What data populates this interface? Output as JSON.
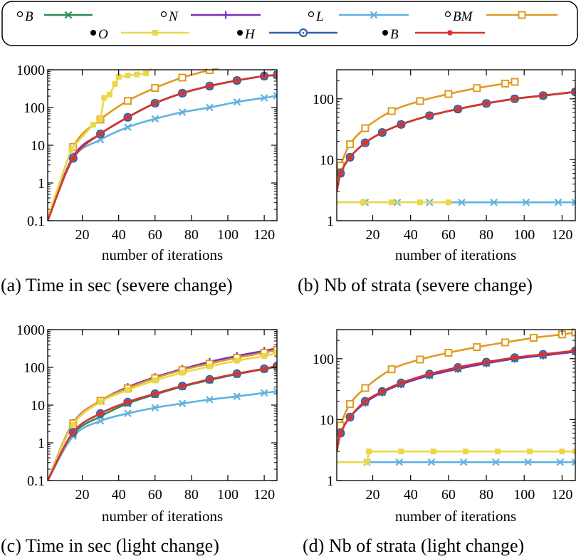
{
  "legend": {
    "items": [
      {
        "marker": "hollow-circle",
        "label": "B",
        "series": "oB"
      },
      {
        "marker": "hollow-circle",
        "label": "N",
        "series": "oN"
      },
      {
        "marker": "hollow-circle",
        "label": "L",
        "series": "oL"
      },
      {
        "marker": "hollow-circle",
        "label": "BM",
        "series": "oBM"
      },
      {
        "marker": "filled-circle",
        "label": "O",
        "series": "fO"
      },
      {
        "marker": "filled-circle",
        "label": "H",
        "series": "fH"
      },
      {
        "marker": "filled-circle",
        "label": "B",
        "series": "fB"
      }
    ]
  },
  "styles": {
    "oB": {
      "color": "#2e8b57",
      "marker": "x"
    },
    "oN": {
      "color": "#7b2fbf",
      "marker": "plus"
    },
    "oL": {
      "color": "#5fb2e0",
      "marker": "x"
    },
    "oBM": {
      "color": "#e09a1f",
      "marker": "square"
    },
    "fO": {
      "color": "#ead84a",
      "marker": "filledsquare"
    },
    "fH": {
      "color": "#2e62a8",
      "marker": "circle"
    },
    "fB": {
      "color": "#d9342b",
      "marker": "dot"
    }
  },
  "chart_data": [
    {
      "type": "line",
      "id": "a",
      "caption": "(a)  Time in sec (severe change)",
      "xlabel": "number of iterations",
      "xlim": [
        1,
        127
      ],
      "ylim": [
        0.1,
        1000
      ],
      "yscale": "log",
      "xticks": [
        20,
        40,
        60,
        80,
        100,
        120
      ],
      "yticks": [
        0.1,
        1,
        10,
        100,
        1000
      ],
      "ytick_labels": [
        "0.1",
        "1",
        "10",
        "100",
        "1000"
      ],
      "series": [
        {
          "key": "oB",
          "x": [
            1,
            15,
            30,
            45,
            60,
            75,
            90,
            105,
            120,
            127
          ],
          "y": [
            0.1,
            5,
            20,
            55,
            130,
            240,
            370,
            520,
            680,
            720
          ]
        },
        {
          "key": "oN",
          "x": [
            1,
            15,
            30,
            45,
            60,
            75,
            90,
            105,
            120,
            127
          ],
          "y": [
            0.1,
            5,
            20,
            55,
            130,
            240,
            370,
            520,
            680,
            720
          ]
        },
        {
          "key": "oL",
          "x": [
            1,
            15,
            30,
            45,
            60,
            75,
            90,
            105,
            120,
            127
          ],
          "y": [
            0.1,
            4.5,
            14,
            30,
            50,
            75,
            100,
            140,
            180,
            205
          ]
        },
        {
          "key": "oBM",
          "x": [
            1,
            15,
            30,
            45,
            60,
            75,
            90,
            95
          ],
          "y": [
            0.1,
            9,
            48,
            150,
            330,
            620,
            980,
            1100
          ]
        },
        {
          "key": "fO",
          "x": [
            1,
            14,
            26,
            30,
            32,
            35,
            38,
            40,
            45,
            50,
            55,
            58
          ],
          "y": [
            0.12,
            8,
            35,
            50,
            180,
            220,
            420,
            650,
            700,
            750,
            800,
            1100
          ]
        },
        {
          "key": "fH",
          "x": [
            1,
            15,
            30,
            45,
            60,
            75,
            90,
            105,
            120,
            127
          ],
          "y": [
            0.1,
            4.5,
            20,
            55,
            130,
            240,
            370,
            520,
            680,
            720
          ]
        },
        {
          "key": "fB",
          "x": [
            1,
            15,
            30,
            45,
            60,
            75,
            90,
            105,
            120,
            127
          ],
          "y": [
            0.1,
            4.5,
            20,
            55,
            130,
            240,
            370,
            520,
            680,
            720
          ]
        }
      ]
    },
    {
      "type": "line",
      "id": "b",
      "caption": "(b)  Nb of strata (severe change)",
      "xlabel": "number of iterations",
      "xlim": [
        1,
        127
      ],
      "ylim": [
        1,
        300
      ],
      "yscale": "log",
      "xticks": [
        20,
        40,
        60,
        80,
        100,
        120
      ],
      "yticks": [
        1,
        10,
        100
      ],
      "ytick_labels": [
        "1",
        "10",
        "100"
      ],
      "series": [
        {
          "key": "oB",
          "x": [
            1,
            3,
            8,
            16,
            25,
            35,
            50,
            65,
            80,
            95,
            110,
            127
          ],
          "y": [
            3,
            6,
            11,
            19,
            28,
            38,
            53,
            68,
            84,
            100,
            113,
            130
          ]
        },
        {
          "key": "oN",
          "x": [
            1,
            3,
            8,
            16,
            25,
            35,
            50,
            65,
            80,
            95,
            110,
            127
          ],
          "y": [
            3,
            6,
            11,
            19,
            28,
            38,
            53,
            68,
            84,
            100,
            113,
            130
          ]
        },
        {
          "key": "oL",
          "x": [
            1,
            16,
            33,
            50,
            67,
            84,
            101,
            118,
            127
          ],
          "y": [
            2,
            2,
            2,
            2,
            2,
            2,
            2,
            2,
            2
          ]
        },
        {
          "key": "oBM",
          "x": [
            1,
            3,
            8,
            16,
            30,
            45,
            60,
            75,
            90,
            95
          ],
          "y": [
            4,
            8,
            18,
            33,
            63,
            92,
            120,
            150,
            178,
            190
          ]
        },
        {
          "key": "fO",
          "x": [
            1,
            15,
            30,
            45,
            60
          ],
          "y": [
            2,
            2,
            2,
            2,
            2
          ]
        },
        {
          "key": "fH",
          "x": [
            1,
            3,
            8,
            16,
            25,
            35,
            50,
            65,
            80,
            95,
            110,
            127
          ],
          "y": [
            3,
            6,
            11,
            19,
            28,
            38,
            53,
            68,
            84,
            100,
            113,
            130
          ]
        },
        {
          "key": "fB",
          "x": [
            1,
            3,
            8,
            16,
            25,
            35,
            50,
            65,
            80,
            95,
            110,
            127
          ],
          "y": [
            3,
            6,
            11,
            19,
            28,
            38,
            53,
            68,
            84,
            100,
            113,
            130
          ]
        }
      ]
    },
    {
      "type": "line",
      "id": "c",
      "caption": "(c)  Time in sec (light change)",
      "xlabel": "number of iterations",
      "xlim": [
        1,
        127
      ],
      "ylim": [
        0.1,
        1000
      ],
      "yscale": "log",
      "xticks": [
        20,
        40,
        60,
        80,
        100,
        120
      ],
      "yticks": [
        0.1,
        1,
        10,
        100,
        1000
      ],
      "ytick_labels": [
        "0.1",
        "1",
        "10",
        "100",
        "1000"
      ],
      "series": [
        {
          "key": "oB",
          "x": [
            1,
            15,
            30,
            45,
            60,
            75,
            90,
            105,
            120,
            127
          ],
          "y": [
            0.1,
            1.7,
            5,
            11,
            19,
            31,
            46,
            66,
            90,
            105
          ]
        },
        {
          "key": "oN",
          "x": [
            1,
            15,
            30,
            45,
            60,
            75,
            90,
            105,
            120,
            127
          ],
          "y": [
            0.1,
            3.4,
            13,
            30,
            55,
            90,
            140,
            200,
            275,
            320
          ]
        },
        {
          "key": "oL",
          "x": [
            1,
            15,
            30,
            45,
            60,
            75,
            90,
            105,
            120,
            127
          ],
          "y": [
            0.1,
            1.5,
            3.8,
            6,
            8.5,
            11,
            14,
            17,
            21,
            23
          ]
        },
        {
          "key": "oBM",
          "x": [
            1,
            15,
            30,
            45,
            60,
            75,
            90,
            105,
            120,
            127
          ],
          "y": [
            0.1,
            3.3,
            13,
            28,
            52,
            85,
            125,
            180,
            245,
            290
          ]
        },
        {
          "key": "fO",
          "x": [
            1,
            15,
            30,
            45,
            60,
            75,
            90,
            105,
            120,
            127
          ],
          "y": [
            0.1,
            3,
            12,
            25,
            45,
            72,
            105,
            150,
            200,
            240
          ]
        },
        {
          "key": "fH",
          "x": [
            1,
            15,
            30,
            45,
            60,
            75,
            90,
            105,
            120,
            127
          ],
          "y": [
            0.1,
            1.9,
            6,
            12,
            20,
            32,
            48,
            68,
            92,
            108
          ]
        },
        {
          "key": "fB",
          "x": [
            1,
            15,
            30,
            45,
            60,
            75,
            90,
            105,
            120,
            127
          ],
          "y": [
            0.1,
            1.9,
            6,
            12,
            20,
            32,
            48,
            68,
            92,
            108
          ]
        }
      ]
    },
    {
      "type": "line",
      "id": "d",
      "caption": "(d)  Nb of strata (light change)",
      "xlabel": "number of iterations",
      "xlim": [
        1,
        127
      ],
      "ylim": [
        1,
        300
      ],
      "yscale": "log",
      "xticks": [
        20,
        40,
        60,
        80,
        100,
        120
      ],
      "yticks": [
        1,
        10,
        100
      ],
      "ytick_labels": [
        "1",
        "10",
        "100"
      ],
      "series": [
        {
          "key": "oB",
          "x": [
            1,
            3,
            8,
            16,
            25,
            35,
            50,
            65,
            80,
            95,
            110,
            127
          ],
          "y": [
            3,
            6,
            11,
            19,
            28,
            38,
            53,
            68,
            84,
            100,
            113,
            130
          ]
        },
        {
          "key": "oN",
          "x": [
            1,
            3,
            8,
            16,
            25,
            35,
            50,
            65,
            80,
            95,
            110,
            127
          ],
          "y": [
            3,
            6,
            11,
            19,
            28,
            38,
            53,
            68,
            84,
            100,
            113,
            130
          ]
        },
        {
          "key": "oL",
          "x": [
            1,
            17,
            34,
            51,
            68,
            85,
            102,
            119,
            127
          ],
          "y": [
            2,
            2,
            2,
            2,
            2,
            2,
            2,
            2,
            2
          ]
        },
        {
          "key": "oBM",
          "x": [
            1,
            3,
            8,
            16,
            30,
            45,
            60,
            75,
            90,
            105,
            120,
            127
          ],
          "y": [
            4,
            8,
            18,
            33,
            67,
            97,
            125,
            155,
            185,
            220,
            250,
            270
          ]
        },
        {
          "key": "fO",
          "x": [
            1,
            17,
            18,
            35,
            52,
            69,
            86,
            103,
            120,
            127
          ],
          "y": [
            2,
            2,
            3,
            3,
            3,
            3,
            3,
            3,
            3,
            3
          ]
        },
        {
          "key": "fH",
          "x": [
            1,
            3,
            8,
            16,
            25,
            35,
            50,
            65,
            80,
            95,
            110,
            127
          ],
          "y": [
            3,
            6,
            11,
            20,
            29,
            40,
            56,
            72,
            88,
            104,
            118,
            135
          ]
        },
        {
          "key": "fB",
          "x": [
            1,
            3,
            8,
            16,
            25,
            35,
            50,
            65,
            80,
            95,
            110,
            127
          ],
          "y": [
            3,
            6,
            11,
            20,
            29,
            40,
            56,
            72,
            88,
            104,
            118,
            135
          ]
        }
      ]
    }
  ]
}
